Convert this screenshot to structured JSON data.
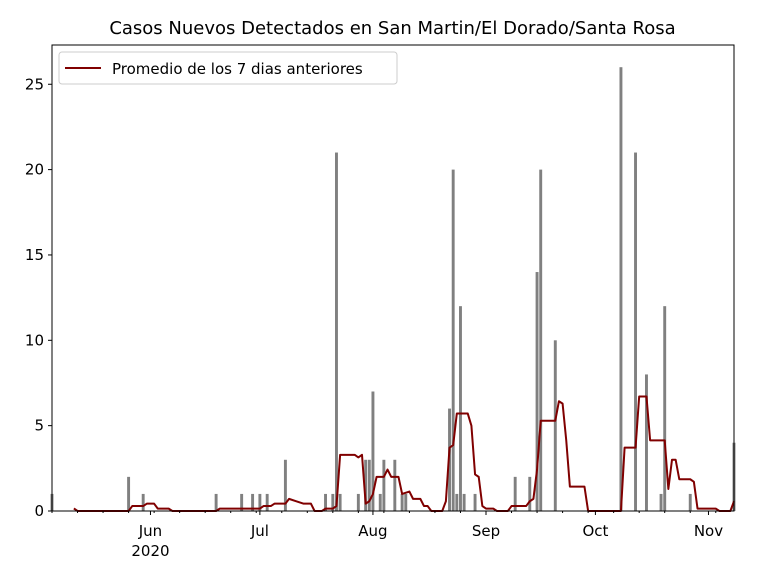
{
  "chart_data": {
    "type": "bar",
    "title": "Casos Nuevos Detectados en San Martin/El Dorado/Santa Rosa",
    "xlabel": "",
    "ylabel": "",
    "x_start_date": "2020-05-05",
    "x_end_date": "2020-11-08",
    "ylim": [
      0,
      27.3
    ],
    "yticks": [
      0,
      5,
      10,
      15,
      20,
      25
    ],
    "xticks": [
      {
        "date": "2020-06-01",
        "label": "Jun",
        "sublabel": "2020"
      },
      {
        "date": "2020-07-01",
        "label": "Jul",
        "sublabel": ""
      },
      {
        "date": "2020-08-01",
        "label": "Aug",
        "sublabel": ""
      },
      {
        "date": "2020-09-01",
        "label": "Sep",
        "sublabel": ""
      },
      {
        "date": "2020-10-01",
        "label": "Oct",
        "sublabel": ""
      },
      {
        "date": "2020-11-01",
        "label": "Nov",
        "sublabel": ""
      }
    ],
    "bar_color": "#808080",
    "line_color": "#800000",
    "legend": {
      "position": "top-left",
      "entries": [
        "Promedio de los 7 dias anteriores"
      ]
    },
    "series": [
      {
        "type": "bar",
        "points": [
          [
            "2020-05-05",
            1
          ],
          [
            "2020-05-26",
            2
          ],
          [
            "2020-05-30",
            1
          ],
          [
            "2020-06-19",
            1
          ],
          [
            "2020-06-26",
            1
          ],
          [
            "2020-06-29",
            1
          ],
          [
            "2020-07-01",
            1
          ],
          [
            "2020-07-03",
            1
          ],
          [
            "2020-07-08",
            3
          ],
          [
            "2020-07-19",
            1
          ],
          [
            "2020-07-21",
            1
          ],
          [
            "2020-07-22",
            21
          ],
          [
            "2020-07-23",
            1
          ],
          [
            "2020-07-28",
            1
          ],
          [
            "2020-07-30",
            3
          ],
          [
            "2020-07-31",
            3
          ],
          [
            "2020-08-01",
            7
          ],
          [
            "2020-08-03",
            1
          ],
          [
            "2020-08-04",
            3
          ],
          [
            "2020-08-07",
            3
          ],
          [
            "2020-08-09",
            1
          ],
          [
            "2020-08-10",
            1
          ],
          [
            "2020-08-22",
            6
          ],
          [
            "2020-08-23",
            20
          ],
          [
            "2020-08-24",
            1
          ],
          [
            "2020-08-25",
            12
          ],
          [
            "2020-08-26",
            1
          ],
          [
            "2020-08-29",
            1
          ],
          [
            "2020-09-09",
            2
          ],
          [
            "2020-09-13",
            2
          ],
          [
            "2020-09-15",
            14
          ],
          [
            "2020-09-16",
            20
          ],
          [
            "2020-09-20",
            10
          ],
          [
            "2020-10-08",
            26
          ],
          [
            "2020-10-12",
            21
          ],
          [
            "2020-10-15",
            8
          ],
          [
            "2020-10-19",
            1
          ],
          [
            "2020-10-20",
            12
          ],
          [
            "2020-10-27",
            1
          ],
          [
            "2020-11-08",
            4
          ]
        ]
      },
      {
        "type": "line",
        "name": "Promedio de los 7 dias anteriores",
        "points": [
          [
            "2020-05-11",
            0.15
          ],
          [
            "2020-05-12",
            0
          ],
          [
            "2020-05-26",
            0
          ],
          [
            "2020-05-27",
            0.29
          ],
          [
            "2020-05-30",
            0.29
          ],
          [
            "2020-05-31",
            0.43
          ],
          [
            "2020-06-02",
            0.43
          ],
          [
            "2020-06-03",
            0.14
          ],
          [
            "2020-06-06",
            0.14
          ],
          [
            "2020-06-07",
            0
          ],
          [
            "2020-06-19",
            0
          ],
          [
            "2020-06-20",
            0.14
          ],
          [
            "2020-07-01",
            0.14
          ],
          [
            "2020-07-02",
            0.29
          ],
          [
            "2020-07-04",
            0.29
          ],
          [
            "2020-07-05",
            0.43
          ],
          [
            "2020-07-08",
            0.43
          ],
          [
            "2020-07-09",
            0.71
          ],
          [
            "2020-07-11",
            0.57
          ],
          [
            "2020-07-13",
            0.43
          ],
          [
            "2020-07-15",
            0.43
          ],
          [
            "2020-07-16",
            0
          ],
          [
            "2020-07-18",
            0
          ],
          [
            "2020-07-19",
            0.14
          ],
          [
            "2020-07-21",
            0.14
          ],
          [
            "2020-07-22",
            0.29
          ],
          [
            "2020-07-23",
            3.29
          ],
          [
            "2020-07-27",
            3.29
          ],
          [
            "2020-07-28",
            3.14
          ],
          [
            "2020-07-29",
            3.29
          ],
          [
            "2020-07-30",
            0.43
          ],
          [
            "2020-07-31",
            0.57
          ],
          [
            "2020-08-01",
            1.0
          ],
          [
            "2020-08-02",
            2.0
          ],
          [
            "2020-08-04",
            2.0
          ],
          [
            "2020-08-05",
            2.43
          ],
          [
            "2020-08-06",
            2.0
          ],
          [
            "2020-08-08",
            2.0
          ],
          [
            "2020-08-09",
            1.0
          ],
          [
            "2020-08-11",
            1.14
          ],
          [
            "2020-08-12",
            0.71
          ],
          [
            "2020-08-14",
            0.71
          ],
          [
            "2020-08-15",
            0.29
          ],
          [
            "2020-08-16",
            0.29
          ],
          [
            "2020-08-17",
            0
          ],
          [
            "2020-08-20",
            0
          ],
          [
            "2020-08-21",
            0.57
          ],
          [
            "2020-08-22",
            3.71
          ],
          [
            "2020-08-23",
            3.86
          ],
          [
            "2020-08-24",
            5.71
          ],
          [
            "2020-08-27",
            5.71
          ],
          [
            "2020-08-28",
            5.0
          ],
          [
            "2020-08-29",
            2.14
          ],
          [
            "2020-08-30",
            2.0
          ],
          [
            "2020-08-31",
            0.29
          ],
          [
            "2020-09-01",
            0.14
          ],
          [
            "2020-09-03",
            0.14
          ],
          [
            "2020-09-04",
            0
          ],
          [
            "2020-09-07",
            0
          ],
          [
            "2020-09-08",
            0.29
          ],
          [
            "2020-09-12",
            0.29
          ],
          [
            "2020-09-13",
            0.57
          ],
          [
            "2020-09-14",
            0.71
          ],
          [
            "2020-09-15",
            2.43
          ],
          [
            "2020-09-16",
            5.29
          ],
          [
            "2020-09-20",
            5.29
          ],
          [
            "2020-09-21",
            6.43
          ],
          [
            "2020-09-22",
            6.29
          ],
          [
            "2020-09-23",
            4.14
          ],
          [
            "2020-09-24",
            1.43
          ],
          [
            "2020-09-28",
            1.43
          ],
          [
            "2020-09-29",
            0
          ],
          [
            "2020-10-08",
            0
          ],
          [
            "2020-10-09",
            3.71
          ],
          [
            "2020-10-12",
            3.71
          ],
          [
            "2020-10-13",
            6.71
          ],
          [
            "2020-10-15",
            6.71
          ],
          [
            "2020-10-16",
            4.14
          ],
          [
            "2020-10-20",
            4.14
          ],
          [
            "2020-10-21",
            1.29
          ],
          [
            "2020-10-22",
            3.0
          ],
          [
            "2020-10-23",
            3.0
          ],
          [
            "2020-10-24",
            1.86
          ],
          [
            "2020-10-27",
            1.86
          ],
          [
            "2020-10-28",
            1.71
          ],
          [
            "2020-10-29",
            0.14
          ],
          [
            "2020-11-03",
            0.14
          ],
          [
            "2020-11-04",
            0
          ],
          [
            "2020-11-07",
            0
          ],
          [
            "2020-11-08",
            0.57
          ]
        ]
      }
    ]
  }
}
